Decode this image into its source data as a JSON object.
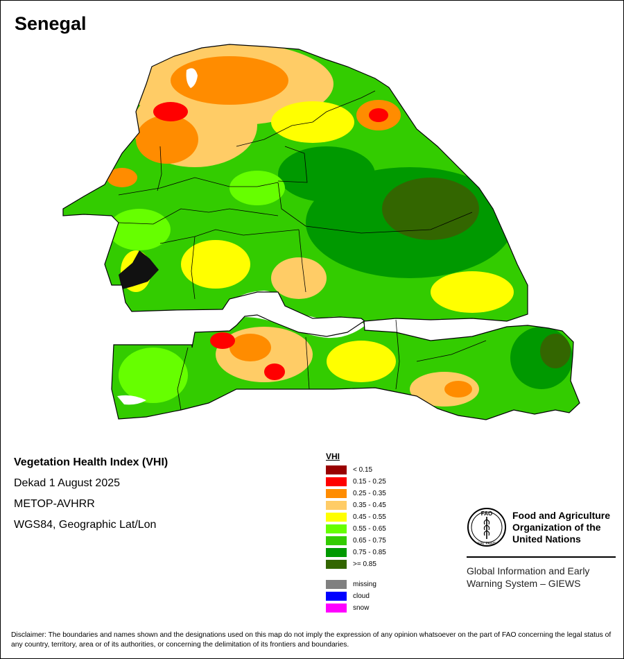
{
  "map": {
    "title": "Senegal",
    "info": {
      "title": "Vegetation Health Index (VHI)",
      "period": "Dekad 1 August 2025",
      "sensor": "METOP-AVHRR",
      "projection": "WGS84, Geographic Lat/Lon"
    },
    "legend": {
      "title": "VHI",
      "classes": [
        {
          "label": "< 0.15",
          "color": "#990000"
        },
        {
          "label": "0.15 - 0.25",
          "color": "#ff0000"
        },
        {
          "label": "0.25 - 0.35",
          "color": "#ff8c00"
        },
        {
          "label": "0.35 - 0.45",
          "color": "#ffcc66"
        },
        {
          "label": "0.45 - 0.55",
          "color": "#ffff00"
        },
        {
          "label": "0.55 - 0.65",
          "color": "#66ff00"
        },
        {
          "label": "0.65 - 0.75",
          "color": "#33cc00"
        },
        {
          "label": "0.75 - 0.85",
          "color": "#009900"
        },
        {
          "label": ">= 0.85",
          "color": "#336600"
        }
      ],
      "special": [
        {
          "label": "missing",
          "color": "#808080"
        },
        {
          "label": "cloud",
          "color": "#0000ff"
        },
        {
          "label": "snow",
          "color": "#ff00ff"
        }
      ]
    },
    "organization": {
      "name": "Food and Agriculture Organization of the United Nations",
      "emblem_letters": "FAO",
      "emblem_motto": "FIAT PANIS",
      "system": "Global Information and Early Warning System – GIEWS"
    },
    "disclaimer": "Disclaimer: The boundaries and names shown and the designations used on this map do not imply the expression of any opinion whatsoever on the part of FAO concerning the legal status of any country, territory, area or of its authorities, or concerning the delimitation of its frontiers and boundaries."
  }
}
